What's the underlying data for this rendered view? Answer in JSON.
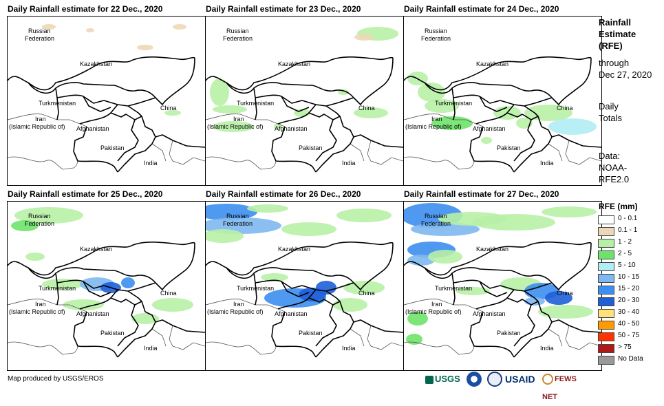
{
  "panels": [
    {
      "title": "Daily Rainfall estimate for 22 Dec., 2020"
    },
    {
      "title": "Daily Rainfall estimate for 23 Dec., 2020"
    },
    {
      "title": "Daily Rainfall estimate for 24 Dec., 2020"
    },
    {
      "title": "Daily Rainfall estimate for 25 Dec., 2020"
    },
    {
      "title": "Daily Rainfall estimate for 26 Dec., 2020"
    },
    {
      "title": "Daily Rainfall estimate for 27 Dec., 2020"
    }
  ],
  "map_labels": {
    "russia_1": "Russian",
    "russia_2": "Federation",
    "kazakhstan": "Kazakhstan",
    "turkmenistan": "Turkmenistan",
    "iran_1": "Iran",
    "iran_2": "(Islamic Republic of)",
    "afghanistan": "Afghanistan",
    "pakistan": "Pakistan",
    "china": "China",
    "india": "India"
  },
  "sidebar": {
    "line1": "Rainfall",
    "line2": "Estimate",
    "line3": "(RFE)",
    "line4": "through",
    "line5": "Dec 27, 2020",
    "line6": "Daily",
    "line7": "Totals",
    "line8": "Data:",
    "line9": "NOAA-",
    "line10": "RFE2.0"
  },
  "legend": {
    "title": "RFE (mm)",
    "items": [
      {
        "label": "0 - 0.1",
        "color": "#ffffff"
      },
      {
        "label": "0.1 - 1",
        "color": "#ecd8b6"
      },
      {
        "label": "1 - 2",
        "color": "#b8efa6"
      },
      {
        "label": "2 - 5",
        "color": "#6ee36a"
      },
      {
        "label": "5 - 10",
        "color": "#b2ecf4"
      },
      {
        "label": "10 - 15",
        "color": "#7eb8f0"
      },
      {
        "label": "15 - 20",
        "color": "#3c8ef0"
      },
      {
        "label": "20 - 30",
        "color": "#1f5fd8"
      },
      {
        "label": "30 - 40",
        "color": "#ffe27a"
      },
      {
        "label": "40 - 50",
        "color": "#ff9a00"
      },
      {
        "label": "50 - 75",
        "color": "#ff3300"
      },
      {
        "label": "> 75",
        "color": "#b01818"
      },
      {
        "label": "No Data",
        "color": "#999999"
      }
    ]
  },
  "credit": "Map produced by USGS/EROS",
  "logos": {
    "usgs": "USGS",
    "usaid": "USAID",
    "fewsnet": "FEWS NET"
  }
}
